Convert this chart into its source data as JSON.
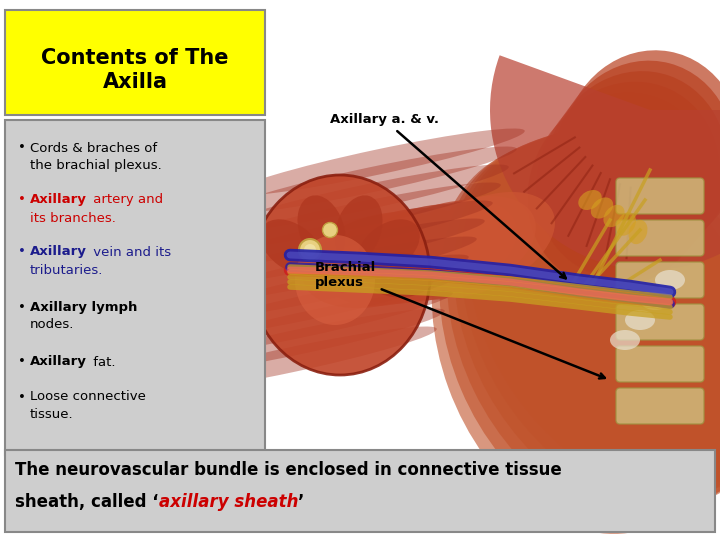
{
  "title_line1": "Contents of The",
  "title_line2": "Axilla",
  "title_bg": "#FFFF00",
  "title_color": "#000000",
  "left_panel_bg": "#CECECE",
  "left_panel_border": "#888888",
  "bullet1_black": "Cords & braches of the brachial plexus.",
  "bullet2_bold": "Axillary",
  "bullet2_rest": " artery and its branches.",
  "bullet2_color": "#CC0000",
  "bullet3_bold": "Axillary",
  "bullet3_rest": " vein and its tributaries.",
  "bullet3_color": "#1C1C8C",
  "bullet4_bold": "Axillary",
  "bullet4_rest": " lymph nodes.",
  "bullet4_color": "#000000",
  "bullet5_bold": "Axillary",
  "bullet5_rest": " fat.",
  "bullet5_color": "#000000",
  "bullet6_black": "Loose connective tissue.",
  "ann1_label": "Axillary a. & v.",
  "ann2_label": "Brachial\nplexus",
  "bottom_box_bg": "#CECECE",
  "bottom_box_border": "#888888",
  "bottom_line1": "The neurovascular bundle is enclosed in connective tissue",
  "bottom_line2_black1": "sheath, called ‘",
  "bottom_line2_red": "axillary sheath",
  "bottom_line2_black2": "’",
  "bottom_text_color": "#000000",
  "bottom_red_color": "#CC0000",
  "fig_width": 7.2,
  "fig_height": 5.4,
  "dpi": 100
}
